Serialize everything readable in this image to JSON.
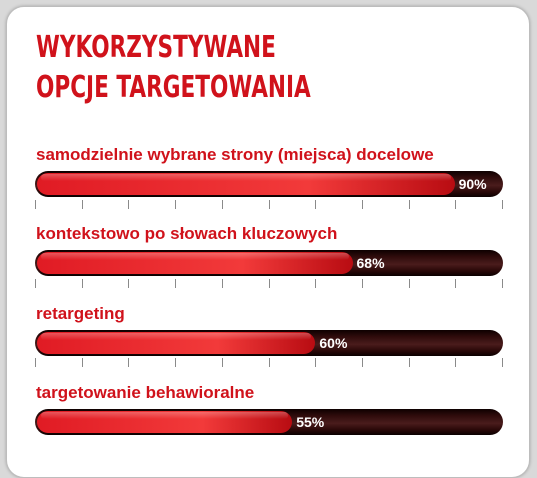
{
  "title_lines": [
    "WYKORZYSTYWANE",
    "OPCJE TARGETOWANIA"
  ],
  "colors": {
    "accent": "#d0121b",
    "track": "#2a0a0a",
    "fill": "#e82a2a"
  },
  "chart_data": {
    "type": "bar",
    "orientation": "horizontal",
    "categories": [
      "samodzielnie wybrane strony (miejsca) docelowe",
      "kontekstowo po słowach kluczowych",
      "retargeting",
      "targetowanie behawioralne"
    ],
    "values": [
      90,
      68,
      60,
      55
    ],
    "value_labels": [
      "90%",
      "68%",
      "60%",
      "55%"
    ],
    "xlim": [
      0,
      100
    ],
    "unit": "%"
  }
}
